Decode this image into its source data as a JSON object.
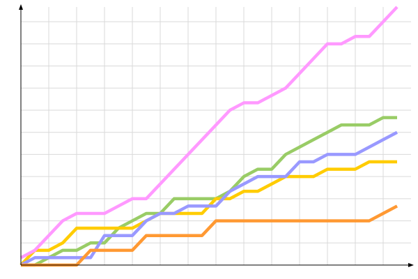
{
  "chart_data": {
    "type": "line",
    "title": "",
    "xlabel": "",
    "ylabel": "",
    "xlim": [
      0,
      28
    ],
    "ylim": [
      0,
      35
    ],
    "grid": true,
    "x_grid_step": 2,
    "y_grid_step": 3,
    "x": [
      0,
      1,
      2,
      3,
      4,
      5,
      6,
      7,
      8,
      9,
      10,
      11,
      12,
      13,
      14,
      15,
      16,
      17,
      18,
      19,
      20,
      21,
      22,
      23,
      24,
      25,
      26,
      27
    ],
    "series": [
      {
        "color": "#99cc66",
        "values": [
          0,
          0,
          1,
          2,
          2,
          3,
          3,
          5,
          6,
          7,
          7,
          9,
          9,
          9,
          9,
          10,
          12,
          13,
          13,
          15,
          16,
          17,
          18,
          19,
          19,
          19,
          20,
          20
        ]
      },
      {
        "color": "#ffcc00",
        "values": [
          0,
          2,
          2,
          3,
          5,
          5,
          5,
          5,
          5,
          6,
          7,
          7,
          7,
          7,
          9,
          9,
          10,
          10,
          11,
          12,
          12,
          12,
          13,
          13,
          13,
          14,
          14,
          14
        ]
      },
      {
        "color": "#9999ff",
        "values": [
          0,
          1,
          1,
          1,
          1,
          1,
          4,
          4,
          4,
          6,
          7,
          7,
          8,
          8,
          8,
          10,
          11,
          12,
          12,
          12,
          14,
          14,
          15,
          15,
          15,
          16,
          17,
          18
        ]
      },
      {
        "color": "#ff9933",
        "values": [
          0,
          0,
          0,
          0,
          0,
          2,
          2,
          2,
          2,
          4,
          4,
          4,
          4,
          4,
          6,
          6,
          6,
          6,
          6,
          6,
          6,
          6,
          6,
          6,
          6,
          6,
          7,
          8
        ]
      },
      {
        "color": "#ff99ff",
        "values": [
          1,
          2,
          4,
          6,
          7,
          7,
          7,
          8,
          9,
          9,
          11,
          13,
          15,
          17,
          19,
          21,
          22,
          22,
          23,
          24,
          26,
          28,
          30,
          30,
          31,
          31,
          33,
          35
        ]
      }
    ]
  }
}
